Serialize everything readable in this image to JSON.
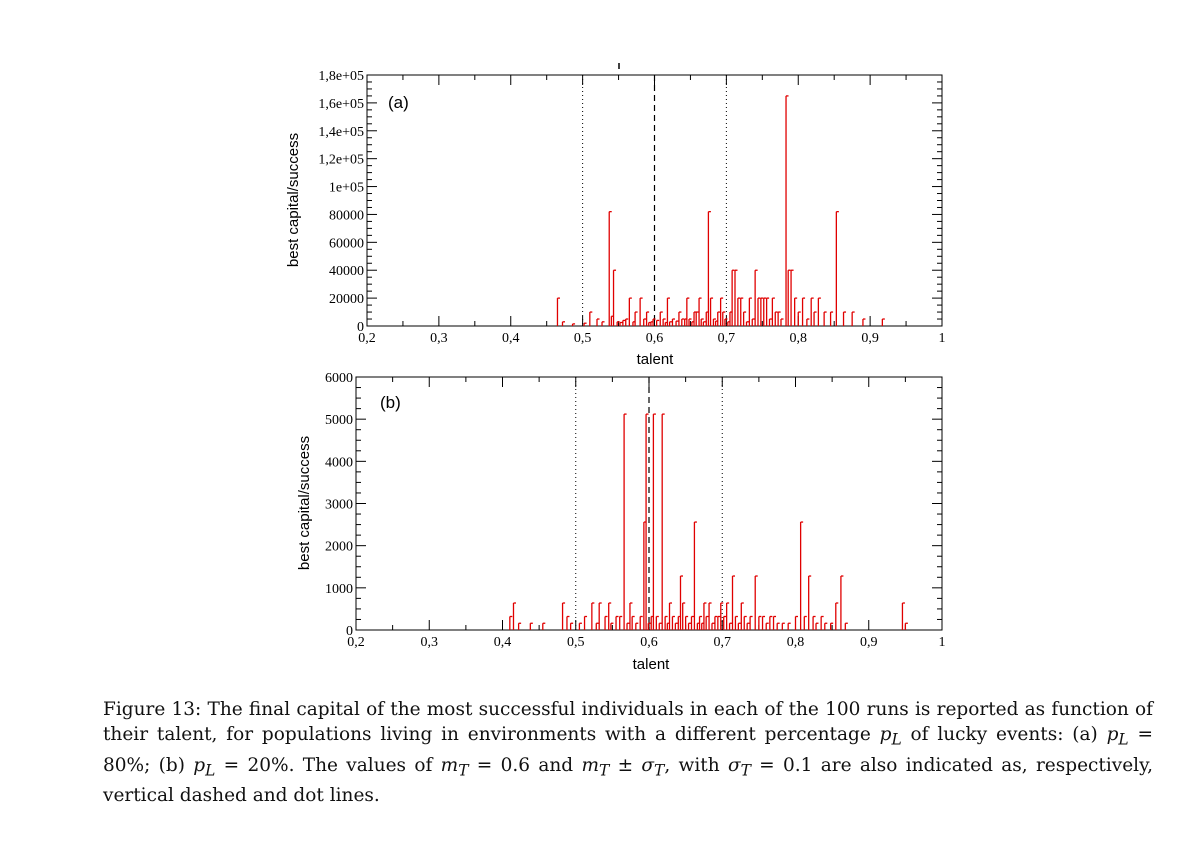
{
  "chart_data": [
    {
      "type": "bar",
      "panel_label": "(a)",
      "xlabel": "talent",
      "ylabel": "best capital/success",
      "xlim": [
        0.2,
        1.0
      ],
      "ylim": [
        0,
        180000
      ],
      "x_tick_labels": [
        "0,2",
        "0,3",
        "0,4",
        "0,5",
        "0,6",
        "0,7",
        "0,8",
        "0,9",
        "1"
      ],
      "y_tick_labels": [
        "0",
        "20000",
        "40000",
        "60000",
        "80000",
        "1e+05",
        "1,2e+05",
        "1,4e+05",
        "1,6e+05",
        "1,8e+05"
      ],
      "reference_lines": {
        "mean": 0.6,
        "mean_minus_sigma": 0.5,
        "mean_plus_sigma": 0.7
      },
      "points": [
        [
          0.465,
          20000
        ],
        [
          0.472,
          3000
        ],
        [
          0.486,
          1500
        ],
        [
          0.502,
          2000
        ],
        [
          0.51,
          10000
        ],
        [
          0.52,
          5000
        ],
        [
          0.527,
          3000
        ],
        [
          0.537,
          82000
        ],
        [
          0.54,
          7000
        ],
        [
          0.543,
          40000
        ],
        [
          0.548,
          3000
        ],
        [
          0.552,
          2500
        ],
        [
          0.556,
          4000
        ],
        [
          0.56,
          5000
        ],
        [
          0.565,
          20000
        ],
        [
          0.57,
          3000
        ],
        [
          0.573,
          10000
        ],
        [
          0.58,
          20000
        ],
        [
          0.585,
          5000
        ],
        [
          0.589,
          10000
        ],
        [
          0.592,
          2500
        ],
        [
          0.595,
          3000
        ],
        [
          0.598,
          5000
        ],
        [
          0.603,
          4000
        ],
        [
          0.608,
          10000
        ],
        [
          0.612,
          5000
        ],
        [
          0.615,
          2500
        ],
        [
          0.618,
          20000
        ],
        [
          0.621,
          3000
        ],
        [
          0.625,
          5000
        ],
        [
          0.63,
          3500
        ],
        [
          0.634,
          10000
        ],
        [
          0.638,
          5000
        ],
        [
          0.642,
          5000
        ],
        [
          0.645,
          20000
        ],
        [
          0.648,
          5000
        ],
        [
          0.652,
          3000
        ],
        [
          0.655,
          10000
        ],
        [
          0.658,
          10000
        ],
        [
          0.662,
          20000
        ],
        [
          0.665,
          5000
        ],
        [
          0.668,
          3000
        ],
        [
          0.672,
          10000
        ],
        [
          0.675,
          82000
        ],
        [
          0.678,
          20000
        ],
        [
          0.682,
          5000
        ],
        [
          0.685,
          3500
        ],
        [
          0.688,
          10000
        ],
        [
          0.692,
          20000
        ],
        [
          0.695,
          10000
        ],
        [
          0.698,
          5000
        ],
        [
          0.702,
          3000
        ],
        [
          0.705,
          10000
        ],
        [
          0.708,
          40000
        ],
        [
          0.712,
          40000
        ],
        [
          0.716,
          20000
        ],
        [
          0.72,
          20000
        ],
        [
          0.724,
          10000
        ],
        [
          0.728,
          3000
        ],
        [
          0.732,
          20000
        ],
        [
          0.736,
          5000
        ],
        [
          0.74,
          40000
        ],
        [
          0.744,
          20000
        ],
        [
          0.748,
          20000
        ],
        [
          0.752,
          20000
        ],
        [
          0.756,
          20000
        ],
        [
          0.76,
          5000
        ],
        [
          0.764,
          20000
        ],
        [
          0.768,
          10000
        ],
        [
          0.772,
          10000
        ],
        [
          0.776,
          5000
        ],
        [
          0.783,
          165000
        ],
        [
          0.786,
          40000
        ],
        [
          0.79,
          40000
        ],
        [
          0.795,
          20000
        ],
        [
          0.8,
          10000
        ],
        [
          0.806,
          20000
        ],
        [
          0.812,
          5000
        ],
        [
          0.818,
          20000
        ],
        [
          0.822,
          10000
        ],
        [
          0.828,
          20000
        ],
        [
          0.836,
          10000
        ],
        [
          0.845,
          10000
        ],
        [
          0.853,
          82000
        ],
        [
          0.863,
          10000
        ],
        [
          0.875,
          10000
        ],
        [
          0.89,
          5000
        ],
        [
          0.917,
          5000
        ]
      ]
    },
    {
      "type": "bar",
      "panel_label": "(b)",
      "xlabel": "talent",
      "ylabel": "best capital/success",
      "xlim": [
        0.2,
        1.0
      ],
      "ylim": [
        0,
        6000
      ],
      "x_tick_labels": [
        "0,2",
        "0,3",
        "0,4",
        "0,5",
        "0,6",
        "0,7",
        "0,8",
        "0,9",
        "1"
      ],
      "y_tick_labels": [
        "0",
        "1000",
        "2000",
        "3000",
        "4000",
        "5000",
        "6000"
      ],
      "reference_lines": {
        "mean": 0.6,
        "mean_minus_sigma": 0.5,
        "mean_plus_sigma": 0.7
      },
      "points": [
        [
          0.41,
          320
        ],
        [
          0.415,
          640
        ],
        [
          0.422,
          160
        ],
        [
          0.438,
          160
        ],
        [
          0.455,
          160
        ],
        [
          0.482,
          640
        ],
        [
          0.488,
          320
        ],
        [
          0.493,
          160
        ],
        [
          0.505,
          160
        ],
        [
          0.512,
          320
        ],
        [
          0.522,
          640
        ],
        [
          0.528,
          160
        ],
        [
          0.532,
          640
        ],
        [
          0.54,
          320
        ],
        [
          0.545,
          640
        ],
        [
          0.548,
          160
        ],
        [
          0.555,
          320
        ],
        [
          0.56,
          320
        ],
        [
          0.566,
          5120
        ],
        [
          0.57,
          160
        ],
        [
          0.574,
          640
        ],
        [
          0.577,
          320
        ],
        [
          0.582,
          160
        ],
        [
          0.588,
          320
        ],
        [
          0.593,
          2560
        ],
        [
          0.596,
          5120
        ],
        [
          0.599,
          160
        ],
        [
          0.603,
          320
        ],
        [
          0.606,
          5120
        ],
        [
          0.61,
          320
        ],
        [
          0.614,
          160
        ],
        [
          0.618,
          5120
        ],
        [
          0.622,
          320
        ],
        [
          0.625,
          160
        ],
        [
          0.628,
          640
        ],
        [
          0.632,
          320
        ],
        [
          0.636,
          160
        ],
        [
          0.64,
          320
        ],
        [
          0.643,
          1280
        ],
        [
          0.646,
          640
        ],
        [
          0.65,
          320
        ],
        [
          0.654,
          160
        ],
        [
          0.658,
          320
        ],
        [
          0.662,
          2560
        ],
        [
          0.666,
          160
        ],
        [
          0.669,
          320
        ],
        [
          0.672,
          160
        ],
        [
          0.675,
          640
        ],
        [
          0.678,
          320
        ],
        [
          0.682,
          640
        ],
        [
          0.686,
          160
        ],
        [
          0.69,
          320
        ],
        [
          0.694,
          320
        ],
        [
          0.698,
          640
        ],
        [
          0.702,
          320
        ],
        [
          0.706,
          640
        ],
        [
          0.71,
          160
        ],
        [
          0.714,
          1280
        ],
        [
          0.718,
          320
        ],
        [
          0.722,
          160
        ],
        [
          0.726,
          640
        ],
        [
          0.73,
          320
        ],
        [
          0.734,
          160
        ],
        [
          0.738,
          320
        ],
        [
          0.745,
          1280
        ],
        [
          0.75,
          320
        ],
        [
          0.755,
          320
        ],
        [
          0.76,
          160
        ],
        [
          0.765,
          320
        ],
        [
          0.77,
          320
        ],
        [
          0.775,
          160
        ],
        [
          0.782,
          160
        ],
        [
          0.79,
          160
        ],
        [
          0.8,
          320
        ],
        [
          0.807,
          2560
        ],
        [
          0.812,
          320
        ],
        [
          0.818,
          1280
        ],
        [
          0.824,
          320
        ],
        [
          0.828,
          160
        ],
        [
          0.835,
          320
        ],
        [
          0.84,
          160
        ],
        [
          0.848,
          160
        ],
        [
          0.855,
          640
        ],
        [
          0.862,
          1280
        ],
        [
          0.868,
          160
        ],
        [
          0.946,
          640
        ],
        [
          0.95,
          160
        ]
      ]
    }
  ],
  "caption": {
    "figure_label": "Figure 13:",
    "text": "The final capital of the most successful individuals in each of the 100 runs is reported as function of their talent, for populations living in environments with a different percentage",
    "text_lucky": "of lucky events: (a)",
    "value_a": "= 80%; (b)",
    "value_b": "= 20%. The values of",
    "mt_value": "= 0.6 and",
    "with": ", with",
    "sigma_value": "= 0.1 are also indicated as, respectively, vertical dashed and dot lines."
  }
}
